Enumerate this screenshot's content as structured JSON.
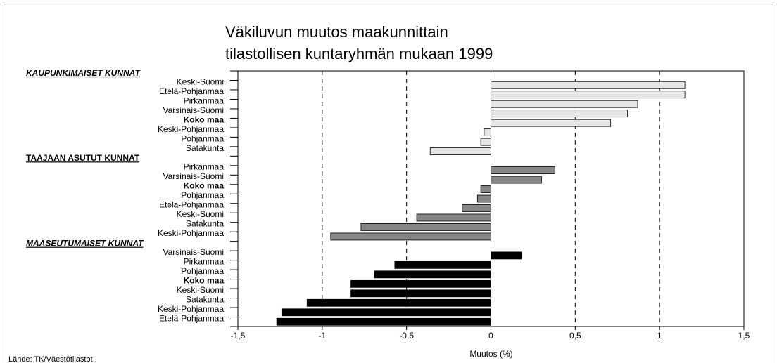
{
  "chart_data": {
    "type": "grouped-hbar",
    "title": [
      "Väkiluvun muutos maakunnittain",
      "tilastollisen kuntaryhmän mukaan 1999"
    ],
    "xlabel": "Muutos (%)",
    "source": "Lähde: TK/Väestötilastot",
    "emphasis": "Koko maa",
    "groups": [
      {
        "name": "KAUPUNKIMAISET KUNNAT",
        "italic": true,
        "color": "#e6e6e6",
        "categories": [
          "Keski-Suomi",
          "Etelä-Pohjanmaa",
          "Pirkanmaa",
          "Varsinais-Suomi",
          "Koko maa",
          "Keski-Pohjanmaa",
          "Pohjanmaa",
          "Satakunta"
        ],
        "values": [
          1.15,
          1.15,
          0.87,
          0.81,
          0.71,
          -0.04,
          -0.06,
          -0.36
        ]
      },
      {
        "name": "TAAJAAN ASUTUT KUNNAT",
        "italic": false,
        "color": "#868686",
        "categories": [
          "Pirkanmaa",
          "Varsinais-Suomi",
          "Koko maa",
          "Pohjanmaa",
          "Etelä-Pohjanmaa",
          "Keski-Suomi",
          "Satakunta",
          "Keski-Pohjanmaa"
        ],
        "values": [
          0.38,
          0.3,
          -0.06,
          -0.08,
          -0.17,
          -0.44,
          -0.77,
          -0.95
        ]
      },
      {
        "name": "MAASEUTUMAISET KUNNAT",
        "italic": true,
        "color": "#000000",
        "categories": [
          "Varsinais-Suomi",
          "Pirkanmaa",
          "Pohjanmaa",
          "Koko maa",
          "Keski-Suomi",
          "Satakunta",
          "Keski-Pohjanmaa",
          "Etelä-Pohjanmaa"
        ],
        "values": [
          0.18,
          -0.57,
          -0.69,
          -0.83,
          -0.83,
          -1.09,
          -1.24,
          -1.27
        ]
      }
    ],
    "xlim": [
      -1.5,
      1.5
    ],
    "xticks": [
      {
        "value": -1.5,
        "label": "-1,5"
      },
      -1,
      {
        "value": -0.5,
        "label": "-0,5"
      },
      0,
      {
        "value": 0.5,
        "label": "0,5"
      },
      1,
      {
        "value": 1.5,
        "label": "1,5"
      }
    ],
    "grid": "dashed"
  }
}
